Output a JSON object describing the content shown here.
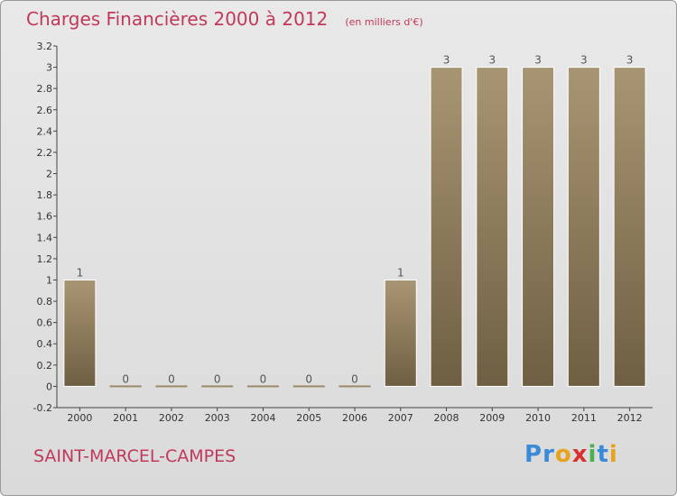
{
  "header": {
    "title": "Charges Financières 2000 à 2012",
    "subtitle": "(en milliers d'€)"
  },
  "commune": "SAINT-MARCEL-CAMPES",
  "logo": {
    "letters": [
      "P",
      "r",
      "o",
      "x",
      "i",
      "t",
      "i"
    ],
    "colors": [
      "#3a8ad8",
      "#3a8ad8",
      "#e9a21b",
      "#d92f2f",
      "#4caf50",
      "#3a8ad8",
      "#e9a21b"
    ]
  },
  "chart_data": {
    "type": "bar",
    "title": "Charges Financières 2000 à 2012",
    "subtitle": "(en milliers d'€)",
    "categories": [
      "2000",
      "2001",
      "2002",
      "2003",
      "2004",
      "2005",
      "2006",
      "2007",
      "2008",
      "2009",
      "2010",
      "2011",
      "2012"
    ],
    "values": [
      1,
      0,
      0,
      0,
      0,
      0,
      0,
      1,
      3,
      3,
      3,
      3,
      3
    ],
    "data_labels": [
      "1",
      "0",
      "0",
      "0",
      "0",
      "0",
      "0",
      "1",
      "3",
      "3",
      "3",
      "3",
      "3"
    ],
    "ylim": [
      -0.2,
      3.2
    ],
    "yticks": [
      "-0.2",
      "0",
      "0.2",
      "0.4",
      "0.6",
      "0.8",
      "1",
      "1.2",
      "1.4",
      "1.6",
      "1.8",
      "2",
      "2.2",
      "2.4",
      "2.6",
      "2.8",
      "3",
      "3.2"
    ],
    "ytick_values": [
      -0.2,
      0,
      0.2,
      0.4,
      0.6,
      0.8,
      1,
      1.2,
      1.4,
      1.6,
      1.8,
      2,
      2.2,
      2.4,
      2.6,
      2.8,
      3,
      3.2
    ],
    "grid": false,
    "colors": {
      "bar_top": "#a89573",
      "bar_bottom": "#6f5f42",
      "zero_bar": "#9b8a6a",
      "axis": "#444444"
    }
  }
}
